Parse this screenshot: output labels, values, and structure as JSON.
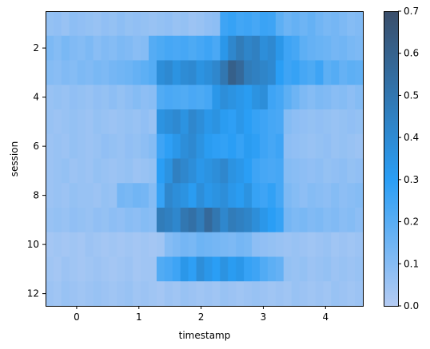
{
  "chart_data": {
    "type": "heatmap",
    "xlabel": "timestamp",
    "ylabel": "session",
    "x_range": [
      -0.5,
      4.6
    ],
    "y_range": [
      0.5,
      12.5
    ],
    "x_ticks": [
      0,
      1,
      2,
      3,
      4
    ],
    "y_ticks": [
      2,
      4,
      6,
      8,
      10,
      12
    ],
    "x_tick_labels": [
      "0",
      "1",
      "2",
      "3",
      "4"
    ],
    "y_tick_labels": [
      "2",
      "4",
      "6",
      "8",
      "10",
      "12"
    ],
    "colorbar": {
      "ticks": [
        0.0,
        0.1,
        0.2,
        0.3,
        0.4,
        0.5,
        0.6,
        0.7
      ],
      "tick_labels": [
        "0.0",
        "0.1",
        "0.2",
        "0.3",
        "0.4",
        "0.5",
        "0.6",
        "0.7"
      ],
      "range": [
        0.0,
        0.7
      ]
    },
    "colormap": [
      "#b4cbf3",
      "#2a9ef5",
      "#3a4e6a"
    ],
    "grid": false,
    "n_bins_x": 40,
    "sessions": [
      {
        "session": 1,
        "values": [
          0.08,
          0.09,
          0.07,
          0.1,
          0.09,
          0.08,
          0.07,
          0.09,
          0.08,
          0.1,
          0.08,
          0.09,
          0.08,
          0.07,
          0.08,
          0.09,
          0.07,
          0.08,
          0.06,
          0.07,
          0.09,
          0.1,
          0.3,
          0.32,
          0.29,
          0.3,
          0.28,
          0.31,
          0.3,
          0.22,
          0.18,
          0.2,
          0.18,
          0.2,
          0.17,
          0.15,
          0.16,
          0.14,
          0.12,
          0.13
        ]
      },
      {
        "session": 2,
        "values": [
          0.14,
          0.12,
          0.15,
          0.13,
          0.12,
          0.14,
          0.11,
          0.13,
          0.12,
          0.14,
          0.13,
          0.11,
          0.12,
          0.24,
          0.26,
          0.28,
          0.27,
          0.28,
          0.26,
          0.28,
          0.3,
          0.27,
          0.38,
          0.45,
          0.5,
          0.46,
          0.48,
          0.42,
          0.44,
          0.38,
          0.3,
          0.28,
          0.22,
          0.2,
          0.19,
          0.18,
          0.16,
          0.17,
          0.15,
          0.14
        ]
      },
      {
        "session": 3,
        "values": [
          0.12,
          0.11,
          0.13,
          0.12,
          0.14,
          0.13,
          0.15,
          0.14,
          0.16,
          0.17,
          0.18,
          0.2,
          0.22,
          0.24,
          0.42,
          0.44,
          0.4,
          0.43,
          0.44,
          0.4,
          0.42,
          0.45,
          0.52,
          0.62,
          0.58,
          0.5,
          0.48,
          0.46,
          0.44,
          0.35,
          0.3,
          0.32,
          0.28,
          0.26,
          0.3,
          0.22,
          0.24,
          0.2,
          0.22,
          0.21
        ]
      },
      {
        "session": 4,
        "values": [
          0.07,
          0.08,
          0.07,
          0.09,
          0.08,
          0.07,
          0.09,
          0.08,
          0.1,
          0.08,
          0.1,
          0.12,
          0.1,
          0.11,
          0.25,
          0.27,
          0.26,
          0.25,
          0.27,
          0.26,
          0.28,
          0.38,
          0.42,
          0.4,
          0.38,
          0.36,
          0.4,
          0.42,
          0.3,
          0.28,
          0.22,
          0.18,
          0.14,
          0.12,
          0.14,
          0.13,
          0.11,
          0.12,
          0.1,
          0.12
        ]
      },
      {
        "session": 5,
        "values": [
          0.07,
          0.06,
          0.07,
          0.08,
          0.07,
          0.06,
          0.08,
          0.07,
          0.06,
          0.07,
          0.08,
          0.07,
          0.09,
          0.07,
          0.4,
          0.42,
          0.44,
          0.4,
          0.45,
          0.42,
          0.38,
          0.4,
          0.36,
          0.34,
          0.38,
          0.35,
          0.32,
          0.3,
          0.28,
          0.27,
          0.12,
          0.1,
          0.09,
          0.08,
          0.09,
          0.08,
          0.07,
          0.08,
          0.09,
          0.08
        ]
      },
      {
        "session": 6,
        "values": [
          0.06,
          0.07,
          0.06,
          0.08,
          0.07,
          0.06,
          0.07,
          0.09,
          0.08,
          0.07,
          0.09,
          0.08,
          0.1,
          0.12,
          0.3,
          0.34,
          0.38,
          0.42,
          0.44,
          0.4,
          0.36,
          0.34,
          0.33,
          0.35,
          0.32,
          0.36,
          0.34,
          0.3,
          0.28,
          0.3,
          0.1,
          0.09,
          0.08,
          0.07,
          0.08,
          0.09,
          0.07,
          0.08,
          0.07,
          0.06
        ]
      },
      {
        "session": 7,
        "values": [
          0.06,
          0.07,
          0.08,
          0.06,
          0.07,
          0.06,
          0.08,
          0.07,
          0.06,
          0.07,
          0.08,
          0.06,
          0.07,
          0.08,
          0.35,
          0.4,
          0.48,
          0.45,
          0.42,
          0.38,
          0.4,
          0.42,
          0.45,
          0.4,
          0.38,
          0.35,
          0.3,
          0.28,
          0.27,
          0.28,
          0.12,
          0.11,
          0.1,
          0.09,
          0.1,
          0.08,
          0.09,
          0.1,
          0.08,
          0.09
        ]
      },
      {
        "session": 8,
        "values": [
          0.06,
          0.07,
          0.06,
          0.08,
          0.07,
          0.07,
          0.06,
          0.08,
          0.07,
          0.16,
          0.15,
          0.17,
          0.16,
          0.12,
          0.32,
          0.45,
          0.42,
          0.4,
          0.36,
          0.42,
          0.38,
          0.4,
          0.42,
          0.38,
          0.36,
          0.4,
          0.32,
          0.3,
          0.33,
          0.28,
          0.14,
          0.12,
          0.1,
          0.12,
          0.11,
          0.1,
          0.12,
          0.1,
          0.11,
          0.12
        ]
      },
      {
        "session": 9,
        "values": [
          0.07,
          0.08,
          0.07,
          0.09,
          0.08,
          0.07,
          0.09,
          0.08,
          0.1,
          0.09,
          0.11,
          0.1,
          0.12,
          0.11,
          0.5,
          0.48,
          0.45,
          0.52,
          0.55,
          0.5,
          0.58,
          0.52,
          0.45,
          0.5,
          0.48,
          0.46,
          0.42,
          0.38,
          0.35,
          0.32,
          0.16,
          0.14,
          0.15,
          0.13,
          0.14,
          0.12,
          0.13,
          0.11,
          0.12,
          0.1
        ]
      },
      {
        "session": 10,
        "values": [
          0.04,
          0.05,
          0.04,
          0.05,
          0.04,
          0.06,
          0.05,
          0.04,
          0.05,
          0.04,
          0.05,
          0.04,
          0.05,
          0.04,
          0.05,
          0.12,
          0.14,
          0.16,
          0.15,
          0.18,
          0.17,
          0.16,
          0.15,
          0.14,
          0.16,
          0.15,
          0.1,
          0.09,
          0.08,
          0.07,
          0.06,
          0.07,
          0.06,
          0.05,
          0.06,
          0.07,
          0.05,
          0.06,
          0.05,
          0.06
        ]
      },
      {
        "session": 11,
        "values": [
          0.05,
          0.04,
          0.06,
          0.05,
          0.04,
          0.05,
          0.06,
          0.05,
          0.04,
          0.05,
          0.06,
          0.04,
          0.05,
          0.05,
          0.25,
          0.27,
          0.3,
          0.38,
          0.34,
          0.42,
          0.38,
          0.35,
          0.4,
          0.36,
          0.38,
          0.32,
          0.3,
          0.25,
          0.22,
          0.2,
          0.08,
          0.07,
          0.08,
          0.06,
          0.07,
          0.08,
          0.06,
          0.07,
          0.06,
          0.07
        ]
      },
      {
        "session": 12,
        "values": [
          0.06,
          0.05,
          0.07,
          0.06,
          0.05,
          0.06,
          0.07,
          0.06,
          0.05,
          0.06,
          0.07,
          0.05,
          0.06,
          0.05,
          0.04,
          0.06,
          0.05,
          0.07,
          0.06,
          0.05,
          0.06,
          0.05,
          0.07,
          0.06,
          0.05,
          0.06,
          0.07,
          0.06,
          0.05,
          0.06,
          0.05,
          0.07,
          0.06,
          0.05,
          0.06,
          0.05,
          0.07,
          0.06,
          0.05,
          0.06
        ]
      }
    ]
  }
}
